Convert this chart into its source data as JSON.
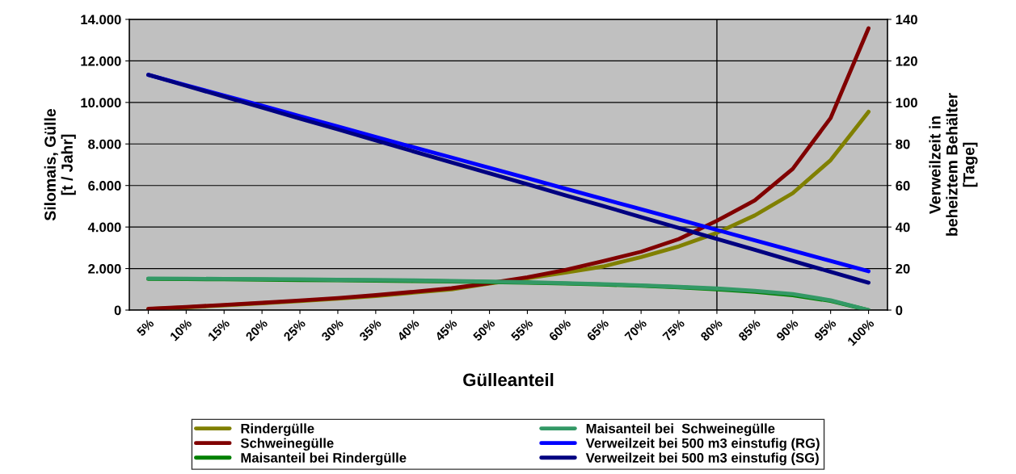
{
  "chart_data": {
    "type": "line",
    "categories": [
      "5%",
      "10%",
      "15%",
      "20%",
      "25%",
      "30%",
      "35%",
      "40%",
      "45%",
      "50%",
      "55%",
      "60%",
      "65%",
      "70%",
      "75%",
      "80%",
      "85%",
      "90%",
      "95%",
      "100%"
    ],
    "xlabel": "Gülleanteil",
    "ylabel": "Silomais, Gülle\n[t / Jahr]",
    "y2label": "Verweilzeit in\nbeheiztem Behälter\n[Tage]",
    "ylim": [
      0,
      14000
    ],
    "yticks": [
      {
        "value": 0,
        "label": "0"
      },
      {
        "value": 2000,
        "label": "2.000"
      },
      {
        "value": 4000,
        "label": "4.000"
      },
      {
        "value": 6000,
        "label": "6.000"
      },
      {
        "value": 8000,
        "label": "8.000"
      },
      {
        "value": 10000,
        "label": "10.000"
      },
      {
        "value": 12000,
        "label": "12.000"
      },
      {
        "value": 14000,
        "label": "14.000"
      }
    ],
    "y2lim": [
      0,
      140
    ],
    "y2ticks": [
      0,
      20,
      40,
      60,
      80,
      100,
      120,
      140
    ],
    "grid": "y",
    "legend": "bottom",
    "marker": "none",
    "line_style": "solid",
    "ref_lines": [
      {
        "axis": "x",
        "value": "80%",
        "color": "#000000"
      }
    ],
    "series": [
      {
        "name": "Rindergülle",
        "color": "#808000",
        "values": [
          50,
          130,
          230,
          330,
          430,
          550,
          680,
          840,
          1000,
          1280,
          1530,
          1800,
          2100,
          2555,
          3070,
          3720,
          4560,
          5630,
          7220,
          9550
        ]
      },
      {
        "name": "Schweinegülle",
        "color": "#800000",
        "values": [
          60,
          150,
          250,
          350,
          460,
          580,
          720,
          880,
          1050,
          1300,
          1580,
          1930,
          2360,
          2810,
          3420,
          4300,
          5280,
          6800,
          9250,
          13570
        ]
      },
      {
        "name": "Maisanteil bei Rindergülle",
        "color": "#008000",
        "values": [
          1500,
          1490,
          1480,
          1470,
          1450,
          1440,
          1420,
          1400,
          1380,
          1350,
          1320,
          1280,
          1230,
          1170,
          1100,
          1000,
          880,
          720,
          440,
          0
        ]
      },
      {
        "name": "Maisanteil bei  Schweinegülle",
        "color": "#339966",
        "values": [
          1520,
          1510,
          1500,
          1490,
          1480,
          1460,
          1450,
          1430,
          1400,
          1370,
          1340,
          1300,
          1250,
          1190,
          1120,
          1040,
          930,
          770,
          470,
          0
        ]
      },
      {
        "name": "Verweilzeit bei 500 m3 einstufig (RG)",
        "color": "#0000ff",
        "axis": "y2",
        "values": [
          113.3,
          108.3,
          103.3,
          98.4,
          93.4,
          88.4,
          83.4,
          78.4,
          73.5,
          68.5,
          63.5,
          58.5,
          53.5,
          48.6,
          43.6,
          38.6,
          33.6,
          28.6,
          23.7,
          18.7
        ]
      },
      {
        "name": "Verweilzeit bei 500 m3 einstufig (SG)",
        "color": "#000080",
        "axis": "y2",
        "values": [
          113.3,
          108.0,
          102.8,
          97.5,
          92.2,
          87.0,
          81.7,
          76.4,
          71.1,
          65.9,
          60.6,
          55.3,
          50.1,
          44.8,
          39.5,
          34.3,
          29.0,
          23.7,
          18.4,
          13.2
        ]
      }
    ]
  }
}
